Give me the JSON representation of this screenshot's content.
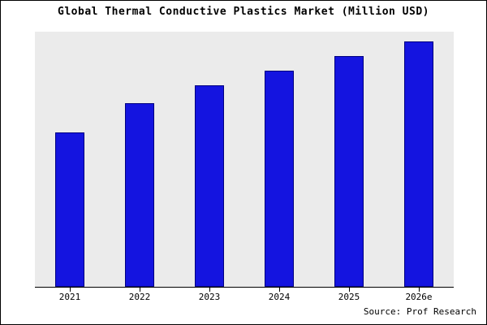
{
  "title": "Global Thermal Conductive Plastics Market (Million USD)",
  "source": "Source: Prof Research",
  "chart_data": {
    "type": "bar",
    "title": "Global Thermal Conductive Plastics Market (Million USD)",
    "categories": [
      "2021",
      "2022",
      "2023",
      "2024",
      "2025",
      "2026e"
    ],
    "values": [
      63,
      75,
      82,
      88,
      94,
      100
    ],
    "xlabel": "",
    "ylabel": "",
    "ylim": [
      0,
      104
    ],
    "grid": false,
    "legend_position": "none",
    "bar_color": "#1414e0",
    "bar_edge_color": "#000080",
    "plot_background": "#ebebeb",
    "page_background": "#ffffff",
    "axis_color": "#000000"
  }
}
